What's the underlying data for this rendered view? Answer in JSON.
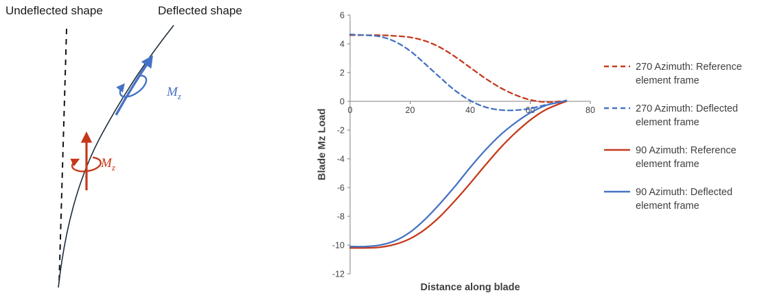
{
  "colors": {
    "red": "#C5391B",
    "blue": "#4472C4",
    "axis": "#7F7F7F",
    "text": "#404040",
    "curve": "#1E2C3A"
  },
  "diagram": {
    "undeflected_label": "Undeflected shape",
    "deflected_label": "Deflected shape",
    "moment_symbol": "M",
    "moment_subscript": "z"
  },
  "chart_data": {
    "type": "line",
    "title": "",
    "xlabel": "Distance along blade",
    "ylabel": "Blade Mz Load",
    "xlim": [
      0,
      80
    ],
    "ylim": [
      -12,
      6
    ],
    "xticks": [
      0,
      20,
      40,
      60,
      80
    ],
    "yticks": [
      6,
      4,
      2,
      0,
      -2,
      -4,
      -6,
      -8,
      -10,
      -12
    ],
    "grid": false,
    "legend_position": "right",
    "x": [
      0,
      5,
      10,
      15,
      20,
      25,
      30,
      35,
      40,
      45,
      50,
      55,
      60,
      65,
      70,
      72
    ],
    "series": [
      {
        "name": "270 Azimuth: Reference element frame",
        "color": "#C5391B",
        "style": "dashed",
        "dash": "7 5",
        "values": [
          4.6,
          4.6,
          4.6,
          4.55,
          4.45,
          4.2,
          3.75,
          3.1,
          2.35,
          1.6,
          0.95,
          0.45,
          0.1,
          -0.05,
          0,
          0.05
        ]
      },
      {
        "name": "270 Azimuth: Deflected element frame",
        "color": "#4472C4",
        "style": "dashed",
        "dash": "7 5",
        "values": [
          4.65,
          4.6,
          4.5,
          4.15,
          3.5,
          2.6,
          1.65,
          0.75,
          0.05,
          -0.4,
          -0.6,
          -0.62,
          -0.5,
          -0.25,
          -0.05,
          0.05
        ]
      },
      {
        "name": "90 Azimuth: Reference element frame",
        "color": "#C5391B",
        "style": "solid",
        "values": [
          -10.2,
          -10.2,
          -10.15,
          -9.95,
          -9.55,
          -8.9,
          -8.0,
          -6.9,
          -5.7,
          -4.45,
          -3.25,
          -2.2,
          -1.3,
          -0.6,
          -0.15,
          0
        ]
      },
      {
        "name": "90 Azimuth: Deflected element frame",
        "color": "#4472C4",
        "style": "solid",
        "values": [
          -10.1,
          -10.1,
          -10.0,
          -9.7,
          -9.1,
          -8.2,
          -7.1,
          -5.9,
          -4.6,
          -3.4,
          -2.35,
          -1.5,
          -0.8,
          -0.3,
          -0.05,
          0.05
        ]
      }
    ]
  }
}
